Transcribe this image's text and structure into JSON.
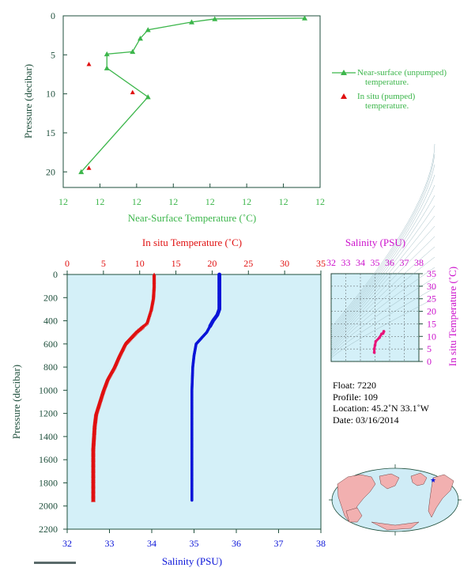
{
  "top_chart": {
    "xlabel": "Near-Surface Temperature (˚C)",
    "ylabel": "Pressure (decibar)",
    "x_tick_labels": [
      "12",
      "12",
      "12",
      "12",
      "12",
      "12",
      "12",
      "12"
    ],
    "y_ticks": [
      "0",
      "5",
      "10",
      "15",
      "20"
    ],
    "legend": {
      "line_label_1": "Near-surface (unpumped)",
      "line_label_2": "temperature.",
      "marker_label_1": "In situ (pumped)",
      "marker_label_2": "temperature."
    }
  },
  "main_chart": {
    "top_axis_label": "In situ Temperature (˚C)",
    "bottom_axis_label": "Salinity (PSU)",
    "ylabel": "Pressure (decibar)",
    "temp_ticks": [
      "0",
      "5",
      "10",
      "15",
      "20",
      "25",
      "30",
      "35"
    ],
    "sal_ticks": [
      "32",
      "33",
      "34",
      "35",
      "36",
      "37",
      "38"
    ],
    "pressure_ticks": [
      "0",
      "200",
      "400",
      "600",
      "800",
      "1000",
      "1200",
      "1400",
      "1600",
      "1800",
      "2000",
      "2200"
    ]
  },
  "ts_chart": {
    "top_label": "Salinity (PSU)",
    "right_label": "In situ Temperature (˚C)",
    "sal_ticks": [
      "32",
      "33",
      "34",
      "35",
      "36",
      "37",
      "38"
    ],
    "temp_ticks": [
      "0",
      "5",
      "10",
      "15",
      "20",
      "25",
      "30",
      "35"
    ]
  },
  "float_info": {
    "float": "Float:  7220",
    "profile": "Profile:  109",
    "location": "Location:  45.2˚N  33.1˚W",
    "date": "Date:  03/16/2014"
  },
  "colors": {
    "near_surface": "#3cb64b",
    "temperature": "#e01010",
    "salinity": "#0a14d8",
    "ts": "#e8147a",
    "axis": "#1f4f3c",
    "plot_bg": "#d4f0f8",
    "magenta": "#cc11cc"
  },
  "chart_data": [
    {
      "type": "line",
      "x_axis": "near-surface temperature (relative position 0 to 1 between ticks)",
      "series": [
        {
          "name": "Near-surface (unpumped) temperature.",
          "x": [
            0.94,
            0.59,
            0.5,
            0.33,
            0.3,
            0.27,
            0.17,
            0.17,
            0.33,
            0.07
          ],
          "y": [
            0.3,
            0.4,
            0.8,
            1.8,
            2.9,
            4.6,
            4.9,
            6.7,
            10.4,
            20.0
          ]
        },
        {
          "name": "In situ (pumped) temperature.",
          "x": [
            0.1,
            0.27,
            0.1
          ],
          "y": [
            6.2,
            9.8,
            19.5
          ]
        }
      ],
      "ylim": [
        22,
        0
      ]
    },
    {
      "type": "line",
      "series": [
        {
          "name": "In situ Temperature (˚C)",
          "x": [
            12.0,
            12.0,
            11.9,
            11.6,
            11.2,
            11.0,
            9.5,
            8.0,
            7.2,
            6.5,
            5.6,
            5.0,
            4.5,
            4.0,
            3.8,
            3.6,
            3.6,
            3.6
          ],
          "y": [
            0,
            100,
            200,
            300,
            380,
            420,
            500,
            600,
            700,
            800,
            900,
            1000,
            1100,
            1200,
            1300,
            1500,
            1700,
            1950
          ]
        },
        {
          "name": "Salinity (PSU)",
          "x": [
            35.6,
            35.6,
            35.6,
            35.6,
            35.55,
            35.45,
            35.3,
            35.05,
            35.0,
            34.97,
            34.95,
            34.95,
            34.95,
            34.95,
            34.95
          ],
          "y": [
            0,
            100,
            200,
            300,
            350,
            400,
            500,
            600,
            700,
            800,
            1000,
            1200,
            1400,
            1700,
            1950
          ]
        }
      ],
      "ylim": [
        2200,
        0
      ]
    },
    {
      "type": "scatter",
      "series": [
        {
          "name": "T-S",
          "x": [
            35.6,
            35.6,
            35.55,
            35.45,
            35.3,
            35.05,
            35.0,
            34.95,
            34.95
          ],
          "y": [
            12.0,
            11.9,
            11.2,
            11.0,
            9.5,
            8.0,
            6.5,
            5.0,
            3.6
          ]
        }
      ],
      "xlim": [
        32,
        38
      ],
      "ylim": [
        0,
        35
      ]
    }
  ]
}
